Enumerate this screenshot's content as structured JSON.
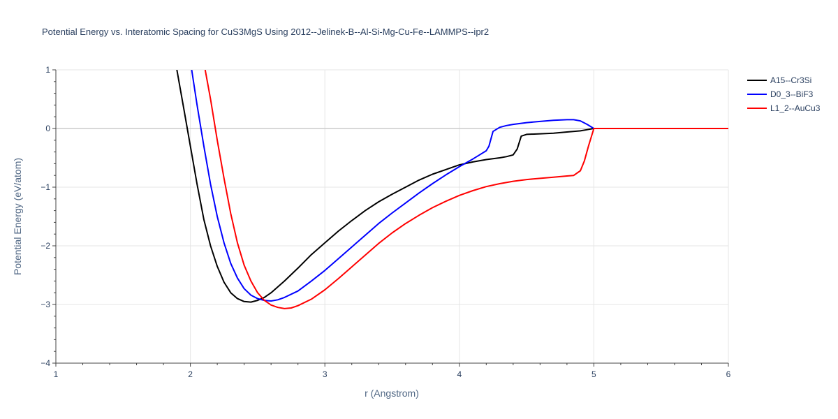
{
  "chart_data": {
    "type": "line",
    "title": "Potential Energy vs. Interatomic Spacing for CuS3MgS Using 2012--Jelinek-B--Al-Si-Mg-Cu-Fe--LAMMPS--ipr2",
    "xlabel": "r (Angstrom)",
    "ylabel": "Potential Energy (eV/atom)",
    "xlim": [
      1,
      6
    ],
    "ylim": [
      -4,
      1
    ],
    "xticks": [
      1,
      2,
      3,
      4,
      5,
      6
    ],
    "yticks": [
      1,
      0,
      -1,
      -2,
      -3,
      -4
    ],
    "grid": true,
    "legend_position": "top-right",
    "series": [
      {
        "name": "A15--Cr3Si",
        "color": "#000000",
        "x": [
          1.9,
          1.95,
          2.0,
          2.05,
          2.1,
          2.15,
          2.2,
          2.25,
          2.3,
          2.35,
          2.4,
          2.45,
          2.5,
          2.55,
          2.6,
          2.7,
          2.8,
          2.9,
          3.0,
          3.1,
          3.2,
          3.3,
          3.4,
          3.5,
          3.6,
          3.7,
          3.8,
          3.9,
          4.0,
          4.1,
          4.2,
          4.3,
          4.35,
          4.4,
          4.43,
          4.46,
          4.5,
          4.6,
          4.7,
          4.8,
          4.9,
          4.95,
          5.0,
          5.5,
          6.0
        ],
        "y": [
          1.0,
          0.35,
          -0.3,
          -0.95,
          -1.55,
          -2.0,
          -2.35,
          -2.62,
          -2.8,
          -2.9,
          -2.95,
          -2.96,
          -2.93,
          -2.88,
          -2.8,
          -2.6,
          -2.38,
          -2.15,
          -1.95,
          -1.75,
          -1.57,
          -1.4,
          -1.25,
          -1.12,
          -1.0,
          -0.88,
          -0.78,
          -0.7,
          -0.62,
          -0.57,
          -0.53,
          -0.5,
          -0.48,
          -0.45,
          -0.35,
          -0.13,
          -0.1,
          -0.09,
          -0.08,
          -0.06,
          -0.04,
          -0.02,
          0.0,
          0.0,
          0.0
        ]
      },
      {
        "name": "D0_3--BiF3",
        "color": "#0000ff",
        "x": [
          2.01,
          2.05,
          2.1,
          2.15,
          2.2,
          2.25,
          2.3,
          2.35,
          2.4,
          2.45,
          2.5,
          2.55,
          2.6,
          2.65,
          2.7,
          2.8,
          2.9,
          3.0,
          3.1,
          3.2,
          3.3,
          3.4,
          3.5,
          3.6,
          3.7,
          3.8,
          3.9,
          4.0,
          4.1,
          4.15,
          4.2,
          4.22,
          4.25,
          4.3,
          4.35,
          4.4,
          4.5,
          4.6,
          4.7,
          4.8,
          4.85,
          4.9,
          4.95,
          5.0,
          5.5,
          6.0
        ],
        "y": [
          1.0,
          0.4,
          -0.3,
          -0.95,
          -1.5,
          -1.95,
          -2.3,
          -2.55,
          -2.73,
          -2.84,
          -2.9,
          -2.93,
          -2.94,
          -2.92,
          -2.88,
          -2.77,
          -2.6,
          -2.42,
          -2.22,
          -2.02,
          -1.82,
          -1.62,
          -1.44,
          -1.27,
          -1.1,
          -0.94,
          -0.79,
          -0.65,
          -0.52,
          -0.45,
          -0.38,
          -0.3,
          -0.05,
          0.02,
          0.05,
          0.07,
          0.1,
          0.12,
          0.14,
          0.15,
          0.15,
          0.13,
          0.07,
          0.0,
          0.0,
          0.0
        ]
      },
      {
        "name": "L1_2--AuCu3",
        "color": "#ff0000",
        "x": [
          2.11,
          2.15,
          2.2,
          2.25,
          2.3,
          2.35,
          2.4,
          2.45,
          2.5,
          2.55,
          2.6,
          2.65,
          2.7,
          2.75,
          2.8,
          2.9,
          3.0,
          3.1,
          3.2,
          3.3,
          3.4,
          3.5,
          3.6,
          3.7,
          3.8,
          3.9,
          4.0,
          4.1,
          4.2,
          4.3,
          4.4,
          4.5,
          4.6,
          4.7,
          4.8,
          4.85,
          4.9,
          4.93,
          4.96,
          5.0,
          5.5,
          6.0
        ],
        "y": [
          1.0,
          0.5,
          -0.2,
          -0.85,
          -1.45,
          -1.95,
          -2.33,
          -2.6,
          -2.8,
          -2.93,
          -3.01,
          -3.05,
          -3.07,
          -3.06,
          -3.02,
          -2.91,
          -2.75,
          -2.56,
          -2.36,
          -2.16,
          -1.96,
          -1.78,
          -1.62,
          -1.48,
          -1.35,
          -1.24,
          -1.14,
          -1.06,
          -0.99,
          -0.94,
          -0.9,
          -0.87,
          -0.85,
          -0.83,
          -0.81,
          -0.8,
          -0.72,
          -0.55,
          -0.3,
          0.0,
          0.0,
          0.0
        ]
      }
    ]
  }
}
